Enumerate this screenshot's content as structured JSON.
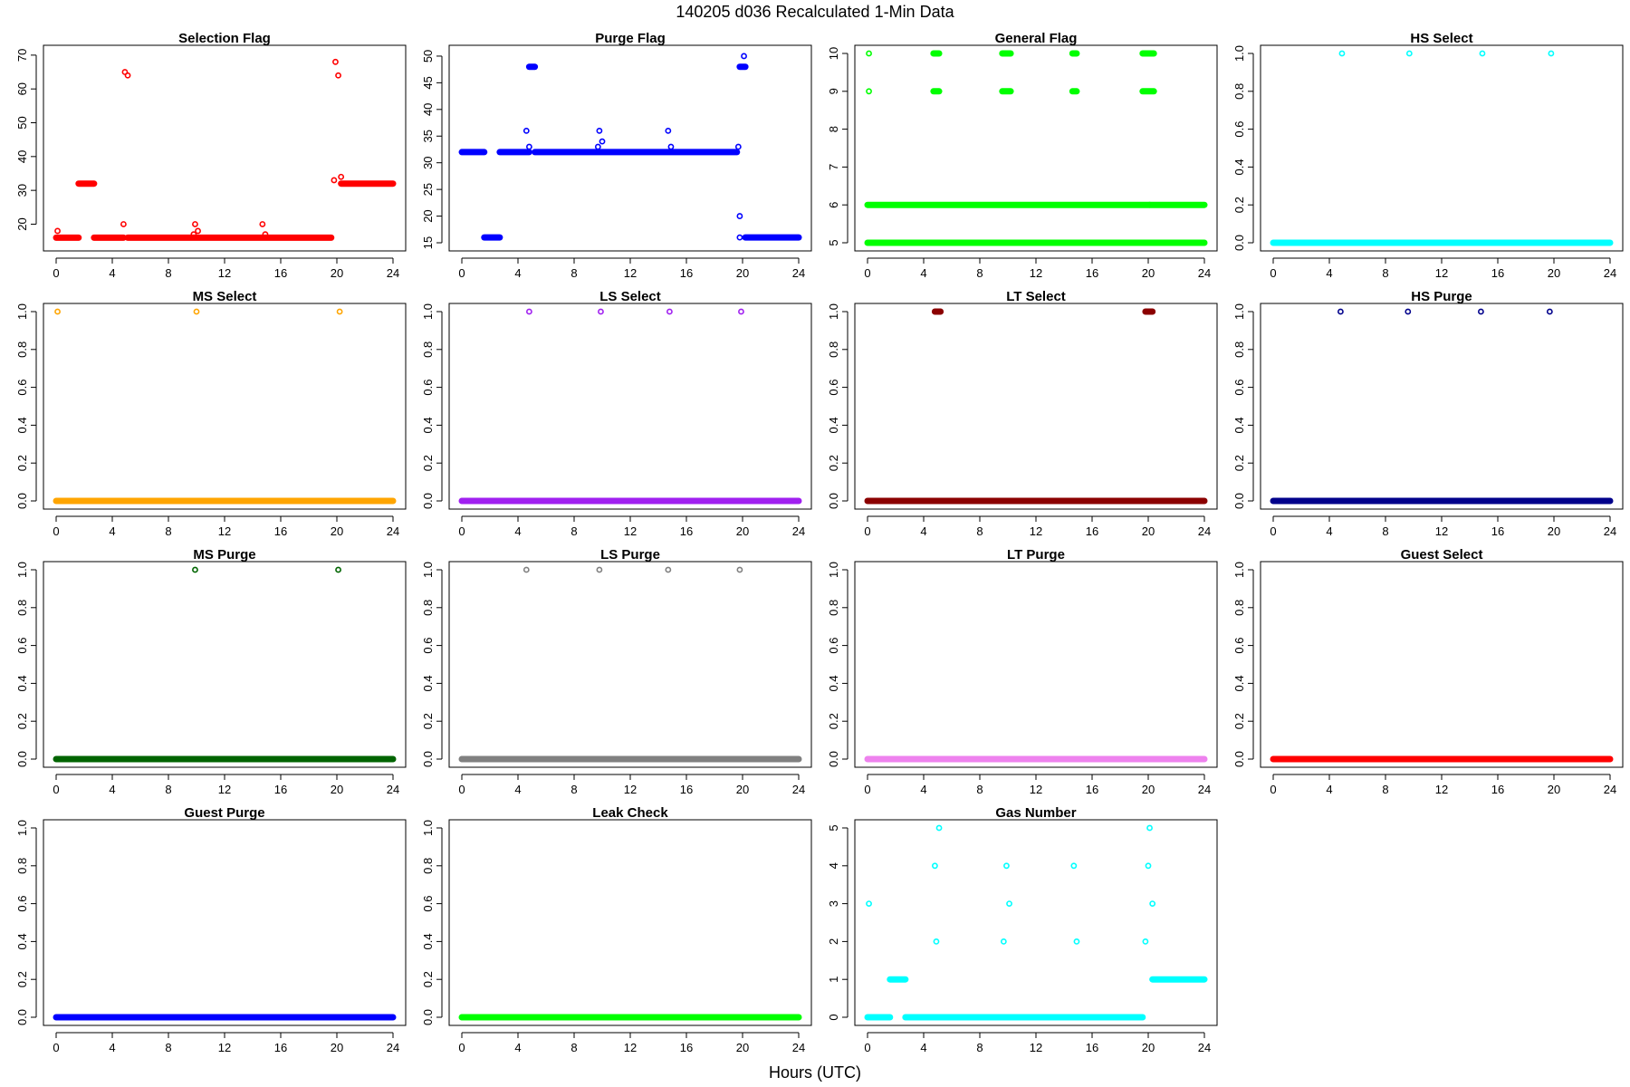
{
  "figure": {
    "title": "140205   d036   Recalculated 1-Min Data",
    "xlabel": "Hours (UTC)"
  },
  "chart_data": [
    {
      "type": "scatter",
      "title": "Selection Flag",
      "color": "#ff0000",
      "xlim": [
        0,
        24
      ],
      "ylim": [
        14.5,
        70.5
      ],
      "x_ticks": [
        0,
        4,
        8,
        12,
        16,
        20,
        24
      ],
      "y_ticks": [
        20,
        30,
        40,
        50,
        60,
        70
      ],
      "runs": [
        {
          "from": 0.0,
          "to": 1.6,
          "y": 16
        },
        {
          "from": 1.6,
          "to": 2.7,
          "y": 32
        },
        {
          "from": 2.7,
          "to": 4.8,
          "y": 16
        },
        {
          "from": 5.1,
          "to": 19.6,
          "y": 16
        },
        {
          "from": 20.3,
          "to": 24.0,
          "y": 32
        }
      ],
      "points": [
        {
          "x": 0.1,
          "y": 18
        },
        {
          "x": 4.8,
          "y": 20
        },
        {
          "x": 4.9,
          "y": 65
        },
        {
          "x": 5.1,
          "y": 64
        },
        {
          "x": 9.8,
          "y": 17
        },
        {
          "x": 9.9,
          "y": 20
        },
        {
          "x": 10.1,
          "y": 18
        },
        {
          "x": 14.7,
          "y": 20
        },
        {
          "x": 14.9,
          "y": 17
        },
        {
          "x": 19.8,
          "y": 33
        },
        {
          "x": 19.9,
          "y": 68
        },
        {
          "x": 20.1,
          "y": 64
        },
        {
          "x": 20.3,
          "y": 34
        }
      ]
    },
    {
      "type": "scatter",
      "title": "Purge Flag",
      "color": "#0000ff",
      "xlim": [
        0,
        24
      ],
      "ylim": [
        15,
        50.5
      ],
      "x_ticks": [
        0,
        4,
        8,
        12,
        16,
        20,
        24
      ],
      "y_ticks": [
        15,
        20,
        25,
        30,
        35,
        40,
        45,
        50
      ],
      "runs": [
        {
          "from": 0.0,
          "to": 1.6,
          "y": 32
        },
        {
          "from": 1.6,
          "to": 2.7,
          "y": 16
        },
        {
          "from": 2.7,
          "to": 4.8,
          "y": 32
        },
        {
          "from": 4.8,
          "to": 5.2,
          "y": 48
        },
        {
          "from": 5.2,
          "to": 19.6,
          "y": 32
        },
        {
          "from": 19.8,
          "to": 20.2,
          "y": 48
        },
        {
          "from": 20.2,
          "to": 24.0,
          "y": 16
        }
      ],
      "points": [
        {
          "x": 4.6,
          "y": 36
        },
        {
          "x": 4.8,
          "y": 33
        },
        {
          "x": 9.7,
          "y": 33
        },
        {
          "x": 9.8,
          "y": 36
        },
        {
          "x": 10.0,
          "y": 34
        },
        {
          "x": 14.7,
          "y": 36
        },
        {
          "x": 14.9,
          "y": 33
        },
        {
          "x": 19.7,
          "y": 33
        },
        {
          "x": 19.8,
          "y": 20
        },
        {
          "x": 19.8,
          "y": 16
        },
        {
          "x": 20.1,
          "y": 50
        }
      ]
    },
    {
      "type": "scatter",
      "title": "General Flag",
      "color": "#00ff00",
      "xlim": [
        0,
        24
      ],
      "ylim": [
        5,
        10
      ],
      "x_ticks": [
        0,
        4,
        8,
        12,
        16,
        20,
        24
      ],
      "y_ticks": [
        5,
        6,
        7,
        8,
        9,
        10
      ],
      "runs": [
        {
          "from": 0.0,
          "to": 24.0,
          "y": 5
        },
        {
          "from": 0.0,
          "to": 24.0,
          "y": 6
        },
        {
          "from": 4.7,
          "to": 5.1,
          "y": 9
        },
        {
          "from": 4.7,
          "to": 5.1,
          "y": 10
        },
        {
          "from": 9.6,
          "to": 10.2,
          "y": 9
        },
        {
          "from": 9.6,
          "to": 10.2,
          "y": 10
        },
        {
          "from": 14.6,
          "to": 14.9,
          "y": 9
        },
        {
          "from": 14.6,
          "to": 14.9,
          "y": 10
        },
        {
          "from": 19.6,
          "to": 20.4,
          "y": 9
        },
        {
          "from": 19.6,
          "to": 20.4,
          "y": 10
        }
      ],
      "points": [
        {
          "x": 0.1,
          "y": 9
        },
        {
          "x": 0.1,
          "y": 10
        },
        {
          "x": 20.1,
          "y": 6
        },
        {
          "x": 20.1,
          "y": 5
        }
      ]
    },
    {
      "type": "scatter",
      "title": "HS Select",
      "color": "#00ffff",
      "xlim": [
        0,
        24
      ],
      "ylim": [
        0,
        1
      ],
      "x_ticks": [
        0,
        4,
        8,
        12,
        16,
        20,
        24
      ],
      "y_ticks": [
        0.0,
        0.2,
        0.4,
        0.6,
        0.8,
        1.0
      ],
      "runs": [
        {
          "from": 0.0,
          "to": 24.0,
          "y": 0
        }
      ],
      "points": [
        {
          "x": 4.9,
          "y": 1
        },
        {
          "x": 9.7,
          "y": 1
        },
        {
          "x": 14.9,
          "y": 1
        },
        {
          "x": 19.8,
          "y": 1
        }
      ]
    },
    {
      "type": "scatter",
      "title": "MS Select",
      "color": "#ffa500",
      "xlim": [
        0,
        24
      ],
      "ylim": [
        0,
        1
      ],
      "x_ticks": [
        0,
        4,
        8,
        12,
        16,
        20,
        24
      ],
      "y_ticks": [
        0.0,
        0.2,
        0.4,
        0.6,
        0.8,
        1.0
      ],
      "runs": [
        {
          "from": 0.0,
          "to": 24.0,
          "y": 0
        }
      ],
      "points": [
        {
          "x": 0.1,
          "y": 1
        },
        {
          "x": 10.0,
          "y": 1
        },
        {
          "x": 20.2,
          "y": 1
        }
      ]
    },
    {
      "type": "scatter",
      "title": "LS Select",
      "color": "#a020f0",
      "xlim": [
        0,
        24
      ],
      "ylim": [
        0,
        1
      ],
      "x_ticks": [
        0,
        4,
        8,
        12,
        16,
        20,
        24
      ],
      "y_ticks": [
        0.0,
        0.2,
        0.4,
        0.6,
        0.8,
        1.0
      ],
      "runs": [
        {
          "from": 0.0,
          "to": 24.0,
          "y": 0
        }
      ],
      "points": [
        {
          "x": 4.8,
          "y": 1
        },
        {
          "x": 9.9,
          "y": 1
        },
        {
          "x": 14.8,
          "y": 1
        },
        {
          "x": 19.9,
          "y": 1
        }
      ]
    },
    {
      "type": "scatter",
      "title": "LT Select",
      "color": "#8b0000",
      "xlim": [
        0,
        24
      ],
      "ylim": [
        0,
        1
      ],
      "x_ticks": [
        0,
        4,
        8,
        12,
        16,
        20,
        24
      ],
      "y_ticks": [
        0.0,
        0.2,
        0.4,
        0.6,
        0.8,
        1.0
      ],
      "runs": [
        {
          "from": 0.0,
          "to": 24.0,
          "y": 0
        },
        {
          "from": 4.8,
          "to": 5.2,
          "y": 1
        },
        {
          "from": 19.8,
          "to": 20.3,
          "y": 1
        }
      ],
      "points": []
    },
    {
      "type": "scatter",
      "title": "HS Purge",
      "color": "#00008b",
      "xlim": [
        0,
        24
      ],
      "ylim": [
        0,
        1
      ],
      "x_ticks": [
        0,
        4,
        8,
        12,
        16,
        20,
        24
      ],
      "y_ticks": [
        0.0,
        0.2,
        0.4,
        0.6,
        0.8,
        1.0
      ],
      "runs": [
        {
          "from": 0.0,
          "to": 24.0,
          "y": 0
        }
      ],
      "points": [
        {
          "x": 4.8,
          "y": 1
        },
        {
          "x": 9.6,
          "y": 1
        },
        {
          "x": 14.8,
          "y": 1
        },
        {
          "x": 19.7,
          "y": 1
        }
      ]
    },
    {
      "type": "scatter",
      "title": "MS Purge",
      "color": "#006400",
      "xlim": [
        0,
        24
      ],
      "ylim": [
        0,
        1
      ],
      "x_ticks": [
        0,
        4,
        8,
        12,
        16,
        20,
        24
      ],
      "y_ticks": [
        0.0,
        0.2,
        0.4,
        0.6,
        0.8,
        1.0
      ],
      "runs": [
        {
          "from": 0.0,
          "to": 24.0,
          "y": 0
        }
      ],
      "points": [
        {
          "x": 9.9,
          "y": 1
        },
        {
          "x": 20.1,
          "y": 1
        }
      ]
    },
    {
      "type": "scatter",
      "title": "LS Purge",
      "color": "#808080",
      "xlim": [
        0,
        24
      ],
      "ylim": [
        0,
        1
      ],
      "x_ticks": [
        0,
        4,
        8,
        12,
        16,
        20,
        24
      ],
      "y_ticks": [
        0.0,
        0.2,
        0.4,
        0.6,
        0.8,
        1.0
      ],
      "runs": [
        {
          "from": 0.0,
          "to": 24.0,
          "y": 0
        }
      ],
      "points": [
        {
          "x": 4.6,
          "y": 1
        },
        {
          "x": 9.8,
          "y": 1
        },
        {
          "x": 14.7,
          "y": 1
        },
        {
          "x": 19.8,
          "y": 1
        }
      ]
    },
    {
      "type": "scatter",
      "title": "LT Purge",
      "color": "#ee82ee",
      "xlim": [
        0,
        24
      ],
      "ylim": [
        0,
        1
      ],
      "x_ticks": [
        0,
        4,
        8,
        12,
        16,
        20,
        24
      ],
      "y_ticks": [
        0.0,
        0.2,
        0.4,
        0.6,
        0.8,
        1.0
      ],
      "runs": [
        {
          "from": 0.0,
          "to": 24.0,
          "y": 0
        }
      ],
      "points": []
    },
    {
      "type": "scatter",
      "title": "Guest Select",
      "color": "#ff0000",
      "xlim": [
        0,
        24
      ],
      "ylim": [
        0,
        1
      ],
      "x_ticks": [
        0,
        4,
        8,
        12,
        16,
        20,
        24
      ],
      "y_ticks": [
        0.0,
        0.2,
        0.4,
        0.6,
        0.8,
        1.0
      ],
      "runs": [
        {
          "from": 0.0,
          "to": 24.0,
          "y": 0
        }
      ],
      "points": []
    },
    {
      "type": "scatter",
      "title": "Guest Purge",
      "color": "#0000ff",
      "xlim": [
        0,
        24
      ],
      "ylim": [
        0,
        1
      ],
      "x_ticks": [
        0,
        4,
        8,
        12,
        16,
        20,
        24
      ],
      "y_ticks": [
        0.0,
        0.2,
        0.4,
        0.6,
        0.8,
        1.0
      ],
      "runs": [
        {
          "from": 0.0,
          "to": 24.0,
          "y": 0
        }
      ],
      "points": []
    },
    {
      "type": "scatter",
      "title": "Leak Check",
      "color": "#00ff00",
      "xlim": [
        0,
        24
      ],
      "ylim": [
        0,
        1
      ],
      "x_ticks": [
        0,
        4,
        8,
        12,
        16,
        20,
        24
      ],
      "y_ticks": [
        0.0,
        0.2,
        0.4,
        0.6,
        0.8,
        1.0
      ],
      "runs": [
        {
          "from": 0.0,
          "to": 24.0,
          "y": 0
        }
      ],
      "points": []
    },
    {
      "type": "scatter",
      "title": "Gas Number",
      "color": "#00ffff",
      "xlim": [
        0,
        24
      ],
      "ylim": [
        0,
        5
      ],
      "x_ticks": [
        0,
        4,
        8,
        12,
        16,
        20,
        24
      ],
      "y_ticks": [
        0,
        1,
        2,
        3,
        4,
        5
      ],
      "runs": [
        {
          "from": 0.0,
          "to": 1.6,
          "y": 0
        },
        {
          "from": 1.6,
          "to": 2.7,
          "y": 1
        },
        {
          "from": 2.7,
          "to": 19.6,
          "y": 0
        },
        {
          "from": 20.3,
          "to": 24.0,
          "y": 1
        }
      ],
      "points": [
        {
          "x": 0.1,
          "y": 3
        },
        {
          "x": 4.8,
          "y": 4
        },
        {
          "x": 4.9,
          "y": 2
        },
        {
          "x": 5.1,
          "y": 5
        },
        {
          "x": 9.7,
          "y": 2
        },
        {
          "x": 9.9,
          "y": 4
        },
        {
          "x": 10.1,
          "y": 3
        },
        {
          "x": 14.7,
          "y": 4
        },
        {
          "x": 14.9,
          "y": 2
        },
        {
          "x": 19.8,
          "y": 2
        },
        {
          "x": 20.0,
          "y": 4
        },
        {
          "x": 20.1,
          "y": 5
        },
        {
          "x": 20.3,
          "y": 3
        }
      ]
    }
  ]
}
